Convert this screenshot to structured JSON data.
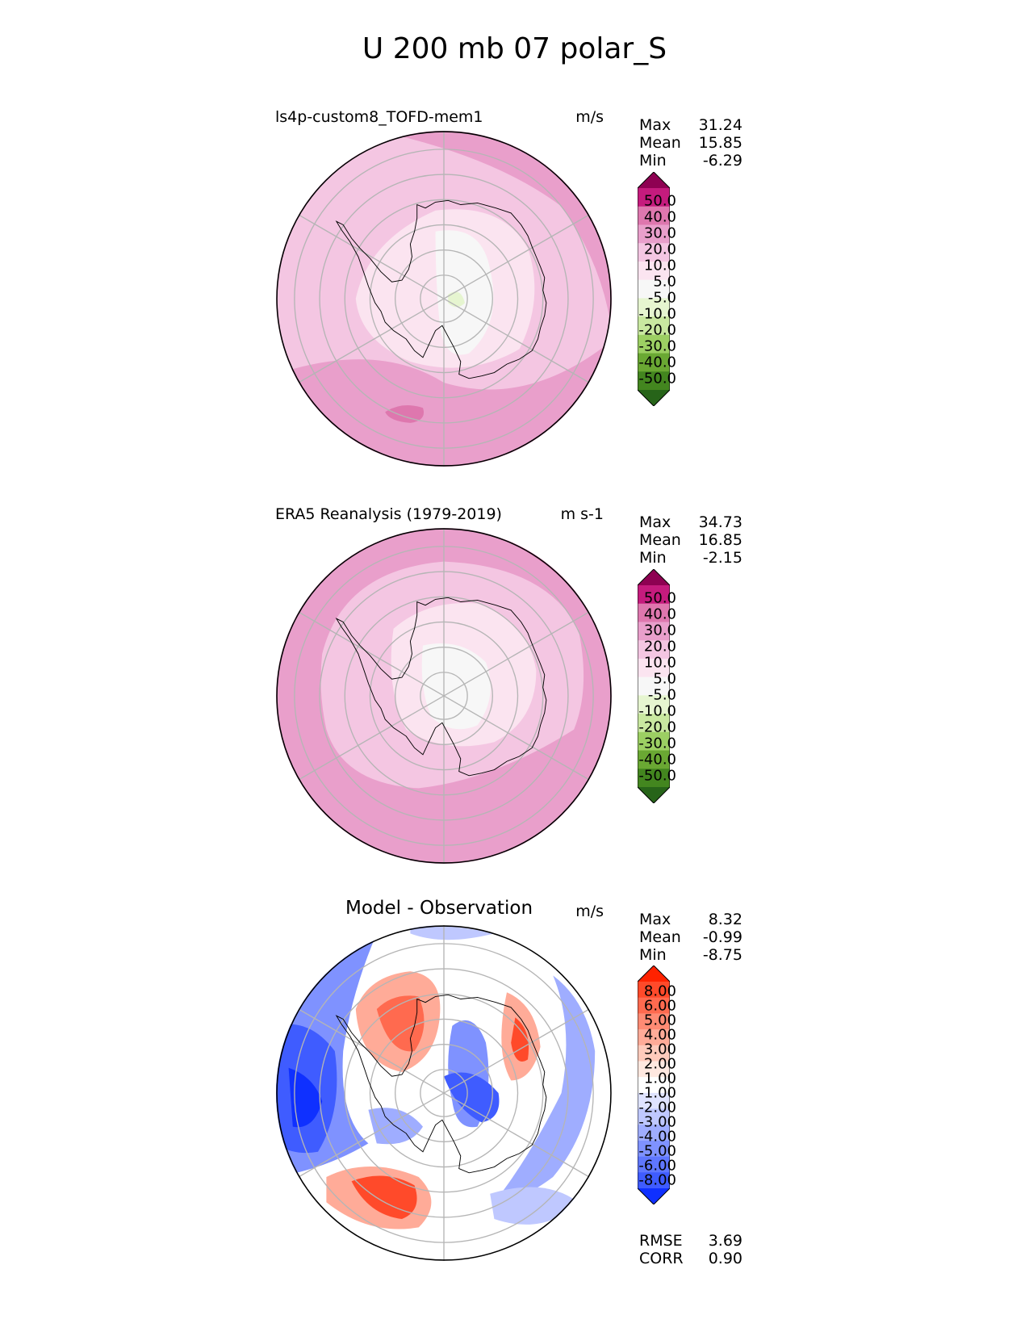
{
  "title": "U 200 mb 07 polar_S",
  "panels": [
    {
      "title": "ls4p-custom8_TOFD-mem1",
      "units": "m/s",
      "stats": [
        {
          "label": "Max",
          "value": "31.24"
        },
        {
          "label": "Mean",
          "value": "15.85"
        },
        {
          "label": "Min",
          "value": "-6.29"
        }
      ]
    },
    {
      "title": "ERA5 Reanalysis (1979-2019)",
      "units": "m s-1",
      "stats": [
        {
          "label": "Max",
          "value": "34.73"
        },
        {
          "label": "Mean",
          "value": "16.85"
        },
        {
          "label": "Min",
          "value": "-2.15"
        }
      ]
    },
    {
      "title": "Model - Observation",
      "units": "m/s",
      "stats": [
        {
          "label": "Max",
          "value": "8.32"
        },
        {
          "label": "Mean",
          "value": "-0.99"
        },
        {
          "label": "Min",
          "value": "-8.75"
        }
      ]
    }
  ],
  "colorbars": {
    "field": {
      "labels": [
        "50.0",
        "40.0",
        "30.0",
        "20.0",
        "10.0",
        "5.0",
        "-5.0",
        "-10.0",
        "-20.0",
        "-30.0",
        "-40.0",
        "-50.0"
      ],
      "colors": [
        "#8e0152",
        "#c51b7d",
        "#de77ae",
        "#e99fcb",
        "#f4c6e2",
        "#fbe4f0",
        "#f7f7f7",
        "#e6f5d0",
        "#c9e8a0",
        "#9ccf63",
        "#6aa833",
        "#43861f",
        "#276419"
      ]
    },
    "diff": {
      "labels": [
        "8.00",
        "6.00",
        "5.00",
        "4.00",
        "3.00",
        "2.00",
        "1.00",
        "-1.00",
        "-2.00",
        "-3.00",
        "-4.00",
        "-5.00",
        "-6.00",
        "-8.00"
      ],
      "colors": [
        "#ff2200",
        "#ff4a2a",
        "#ff6a4f",
        "#ff8b74",
        "#ffab98",
        "#ffcbbc",
        "#ffe8e0",
        "#ffffff",
        "#dfe3ff",
        "#bfc8ff",
        "#9fadff",
        "#7f92ff",
        "#5f77ff",
        "#3f5cff",
        "#0f30ff"
      ]
    }
  },
  "metrics": [
    {
      "label": "RMSE",
      "value": "3.69"
    },
    {
      "label": "CORR",
      "value": "0.90"
    }
  ],
  "chart_data": [
    {
      "type": "heatmap",
      "title": "ls4p-custom8_TOFD-mem1",
      "projection": "south polar stereographic",
      "units": "m/s",
      "levels": [
        -50,
        -40,
        -30,
        -20,
        -10,
        -5,
        5,
        10,
        20,
        30,
        40,
        50
      ],
      "max": 31.24,
      "mean": 15.85,
      "min": -6.29
    },
    {
      "type": "heatmap",
      "title": "ERA5 Reanalysis (1979-2019)",
      "projection": "south polar stereographic",
      "units": "m s-1",
      "levels": [
        -50,
        -40,
        -30,
        -20,
        -10,
        -5,
        5,
        10,
        20,
        30,
        40,
        50
      ],
      "max": 34.73,
      "mean": 16.85,
      "min": -2.15
    },
    {
      "type": "heatmap",
      "title": "Model - Observation",
      "projection": "south polar stereographic",
      "units": "m/s",
      "levels": [
        -8,
        -6,
        -5,
        -4,
        -3,
        -2,
        -1,
        1,
        2,
        3,
        4,
        5,
        6,
        8
      ],
      "max": 8.32,
      "mean": -0.99,
      "min": -8.75,
      "rmse": 3.69,
      "corr": 0.9
    }
  ]
}
